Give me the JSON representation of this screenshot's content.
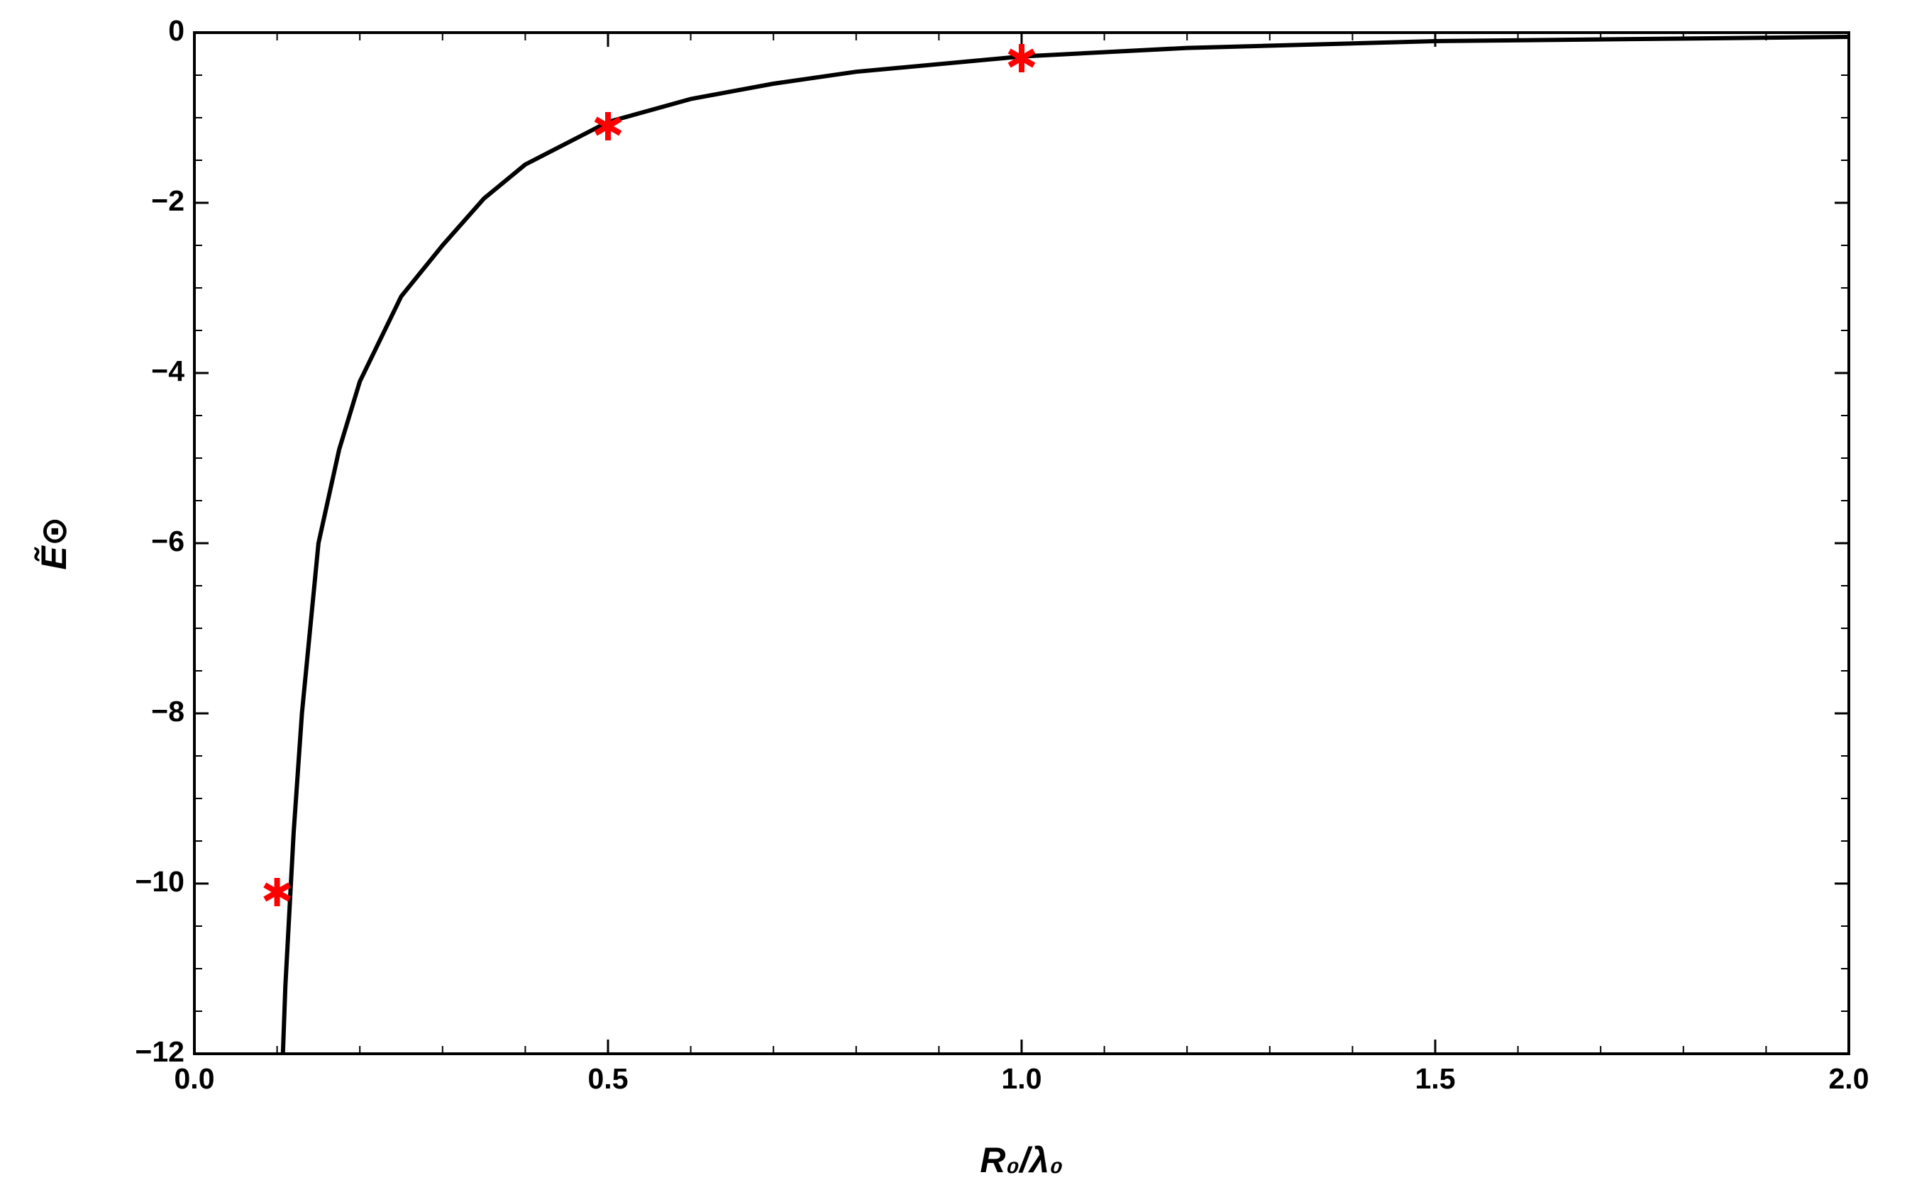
{
  "chart_data": {
    "type": "line",
    "x_label": "R₀/λ₀",
    "y_label": "Ẽ⊙",
    "xlim": [
      0,
      2
    ],
    "ylim": [
      -12,
      0
    ],
    "xticks": [
      {
        "value": 0,
        "label": "0.0"
      },
      0.5,
      {
        "value": 1,
        "label": "1.0"
      },
      1.5,
      {
        "value": 2,
        "label": "2.0"
      }
    ],
    "yticks": [
      {
        "value": -12,
        "label": "−12"
      },
      {
        "value": -10,
        "label": "−10"
      },
      {
        "value": -8,
        "label": "−8"
      },
      {
        "value": -6,
        "label": "−6"
      },
      {
        "value": -4,
        "label": "−4"
      },
      {
        "value": -2,
        "label": "−2"
      },
      0
    ],
    "xminorticks": [
      0.1,
      0.2,
      0.3,
      0.4,
      0.6,
      0.7,
      0.8,
      0.9,
      1.1,
      1.2,
      1.3,
      1.4,
      1.6,
      1.7,
      1.8,
      1.9
    ],
    "yminorticks": [
      -11.5,
      -11,
      -10.5,
      -9.5,
      -9,
      -8.5,
      -7.5,
      -7,
      -6.5,
      -5.5,
      -5,
      -4.5,
      -3.5,
      -3,
      -2.5,
      -1.5,
      -1,
      -0.5
    ],
    "series": [
      {
        "type": "line",
        "color": "#000000",
        "x": [
          0.107,
          0.11,
          0.12,
          0.13,
          0.15,
          0.175,
          0.2,
          0.25,
          0.3,
          0.35,
          0.4,
          0.5,
          0.6,
          0.7,
          0.8,
          1.0,
          1.2,
          1.5,
          2.0
        ],
        "values": [
          -12,
          -11.2,
          -9.4,
          -8.0,
          -6.0,
          -4.9,
          -4.1,
          -3.1,
          -2.5,
          -1.95,
          -1.55,
          -1.05,
          -0.78,
          -0.6,
          -0.46,
          -0.28,
          -0.18,
          -0.1,
          -0.05
        ]
      },
      {
        "type": "scatter",
        "color": "#ff0000",
        "x": [
          0.1,
          0.5,
          1.0
        ],
        "values": [
          -10.1,
          -1.1,
          -0.3
        ]
      }
    ]
  }
}
